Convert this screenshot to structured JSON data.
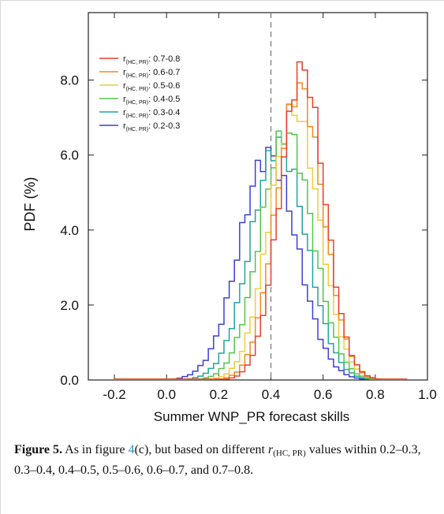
{
  "chart_data": {
    "type": "step",
    "xlabel": "Summer WNP_PR forecast skills",
    "ylabel": "PDF (%)",
    "xlim": [
      -0.3,
      1.0
    ],
    "ylim": [
      0,
      9.8
    ],
    "x_ticks": [
      "-0.2",
      "0.0",
      "0.2",
      "0.4",
      "0.6",
      "0.8",
      "1.0"
    ],
    "y_ticks": [
      "0.0",
      "2.0",
      "4.0",
      "6.0",
      "8.0"
    ],
    "reference_line_x": 0.4,
    "legend_position": "top-left",
    "legend_sub": "(HC, PR)",
    "bin_width": 0.02,
    "series": [
      {
        "name": "0.7-0.8",
        "color": "#e8412a",
        "peak_x": 0.52,
        "sigma": 0.085,
        "peak": 8.3
      },
      {
        "name": "0.6-0.7",
        "color": "#f28c1c",
        "peak_x": 0.51,
        "sigma": 0.09,
        "peak": 7.8
      },
      {
        "name": "0.5-0.6",
        "color": "#f2cc3c",
        "peak_x": 0.49,
        "sigma": 0.095,
        "peak": 7.2
      },
      {
        "name": "0.4-0.5",
        "color": "#54c54a",
        "peak_x": 0.46,
        "sigma": 0.1,
        "peak": 6.6
      },
      {
        "name": "0.3-0.4",
        "color": "#23a39e",
        "peak_x": 0.43,
        "sigma": 0.105,
        "peak": 6.3
      },
      {
        "name": "0.2-0.3",
        "color": "#3d3fd6",
        "peak_x": 0.39,
        "sigma": 0.11,
        "peak": 6.0
      }
    ]
  },
  "caption": {
    "label": "Figure 5.",
    "text_1": " As in figure ",
    "ref": "4",
    "text_2": "(c), but based on different ",
    "r_symbol": "r",
    "r_sub": "(HC, PR)",
    "text_3": " values within 0.2–0.3, 0.3–0.4, 0.4–0.5, 0.5–0.6, 0.6–0.7, and 0.7–0.8."
  }
}
